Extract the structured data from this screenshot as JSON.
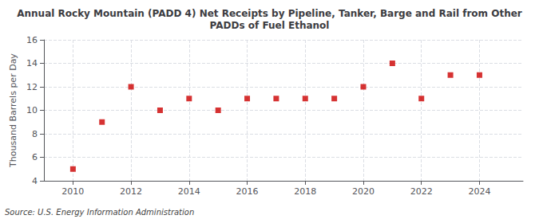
{
  "chart_data": {
    "type": "scatter",
    "title": "Annual Rocky Mountain (PADD 4) Net Receipts by Pipeline, Tanker, Barge and Rail from Other\nPADDs of Fuel Ethanol",
    "ylabel": "Thousand Barrels per Day",
    "source": "Source: U.S. Energy Information Administration",
    "x": [
      2010,
      2011,
      2012,
      2013,
      2014,
      2015,
      2016,
      2017,
      2018,
      2019,
      2020,
      2021,
      2022,
      2023,
      2024
    ],
    "values": [
      5.0,
      9.0,
      12.0,
      10.0,
      11.0,
      10.0,
      11.0,
      11.0,
      11.0,
      11.0,
      12.0,
      14.0,
      11.0,
      13.0,
      13.0
    ],
    "color": "#cc0000",
    "marker": "square",
    "xlim": [
      2009.0,
      2025.5
    ],
    "xticks": [
      2010,
      2012,
      2014,
      2016,
      2018,
      2020,
      2022,
      2024
    ],
    "ylim": [
      4,
      16
    ],
    "yticks": [
      4,
      6,
      8,
      10,
      12,
      14,
      16
    ],
    "grid": true
  }
}
